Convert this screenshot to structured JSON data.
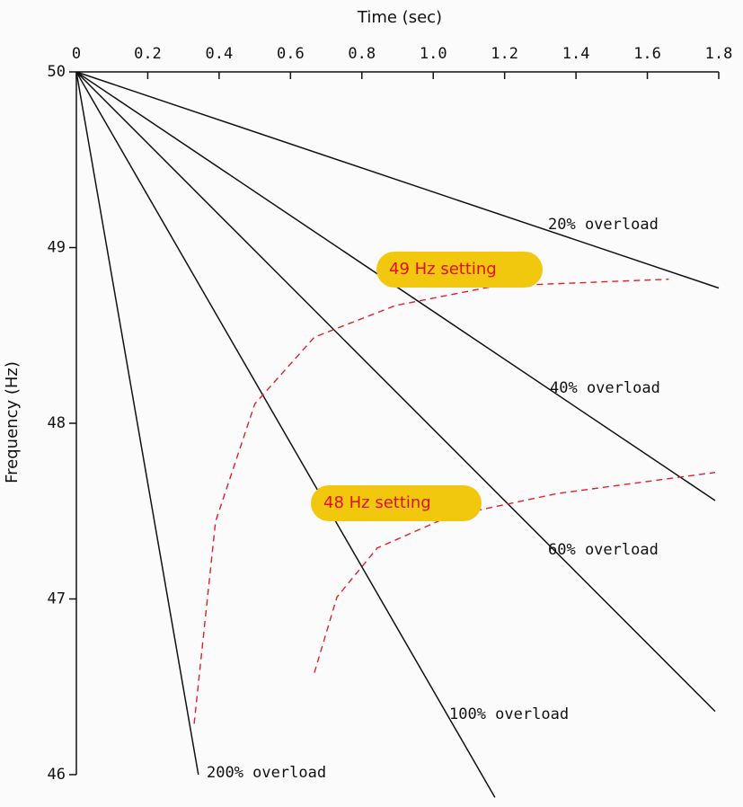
{
  "chart_data": {
    "type": "line",
    "x_label": "Time (sec)",
    "y_label": "Frequency (Hz)",
    "xlim": [
      0,
      1.8
    ],
    "ylim": [
      46,
      50
    ],
    "xticks": [
      0,
      0.2,
      0.4,
      0.6,
      0.8,
      {
        "value": 1,
        "label": "1.0"
      },
      1.2,
      1.4,
      1.6,
      1.8
    ],
    "yticks": [
      46,
      47,
      48,
      49,
      50
    ],
    "series": [
      {
        "name": "20% overload",
        "color": "#111111",
        "dashed": false,
        "x": [
          0,
          1.8
        ],
        "values": [
          50,
          48.77
        ]
      },
      {
        "name": "40% overload",
        "color": "#111111",
        "dashed": false,
        "x": [
          0,
          1.79
        ],
        "values": [
          50,
          47.56
        ]
      },
      {
        "name": "60% overload",
        "color": "#111111",
        "dashed": false,
        "x": [
          0,
          1.79
        ],
        "values": [
          50,
          46.36
        ]
      },
      {
        "name": "100% overload",
        "color": "#111111",
        "dashed": false,
        "x": [
          0,
          1.173
        ],
        "values": [
          50,
          45.87
        ]
      },
      {
        "name": "200% overload",
        "color": "#111111",
        "dashed": false,
        "x": [
          0,
          0.342
        ],
        "values": [
          50,
          46.0
        ]
      },
      {
        "name": "49 Hz setting",
        "color": "#e0202a",
        "dashed": true,
        "x": [
          0.33,
          0.39,
          0.5,
          0.667,
          0.894,
          1.17,
          1.66
        ],
        "values": [
          46.29,
          47.44,
          48.11,
          48.49,
          48.67,
          48.78,
          48.82
        ]
      },
      {
        "name": "48 Hz setting",
        "color": "#e0202a",
        "dashed": true,
        "x": [
          0.667,
          0.73,
          0.843,
          1.045,
          1.347,
          1.79
        ],
        "values": [
          46.58,
          47.01,
          47.29,
          47.47,
          47.6,
          47.72
        ]
      }
    ]
  }
}
